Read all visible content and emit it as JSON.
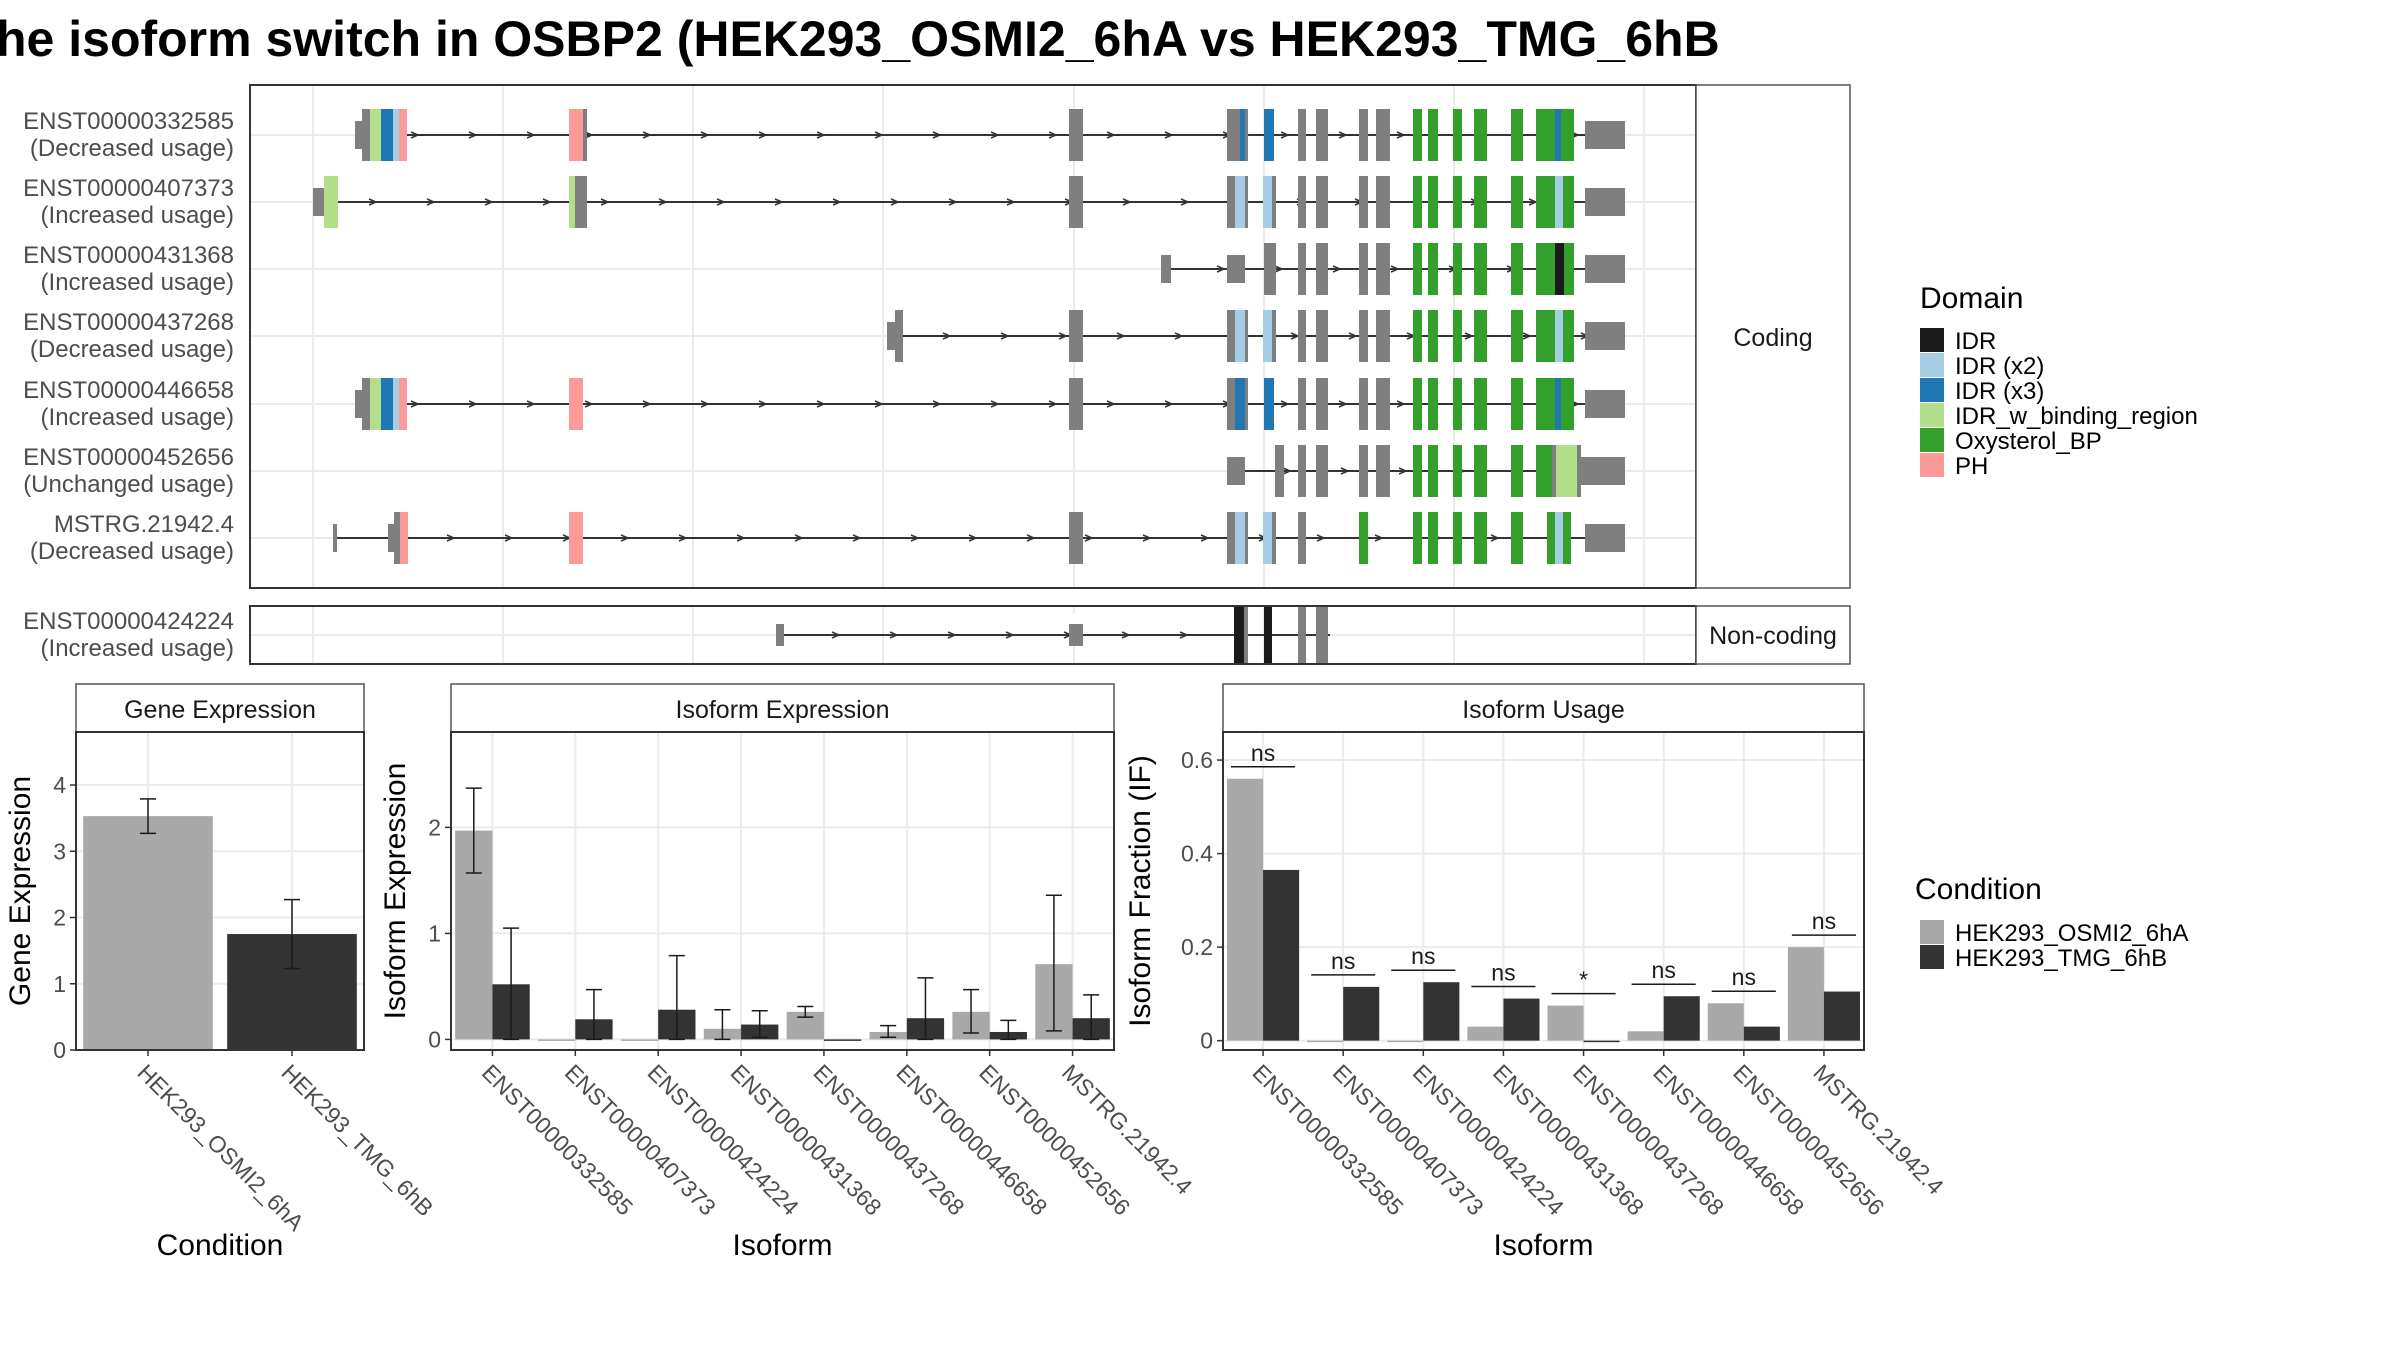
{
  "title": "he isoform switch in OSBP2 (HEK293_OSMI2_6hA vs HEK293_TMG_6hB",
  "colors": {
    "intron": "#333333",
    "noncoding": "#7f7f7f",
    "IDR": "#1a1a1a",
    "IDR (x2)": "#a6cee3",
    "IDR (x3)": "#1f78b4",
    "IDR_w_binding_region": "#b2df8a",
    "Oxysterol_BP": "#33a02c",
    "PH": "#fb9a99",
    "cond1": "#a9a9a9",
    "cond2": "#333333"
  },
  "structure": {
    "coding_strip_label": "Coding",
    "noncoding_strip_label": "Non-coding",
    "coding_transcripts": [
      {
        "id": "ENST00000332585",
        "usage": "(Decreased usage)"
      },
      {
        "id": "ENST00000407373",
        "usage": "(Increased usage)"
      },
      {
        "id": "ENST00000431368",
        "usage": "(Increased usage)"
      },
      {
        "id": "ENST00000437268",
        "usage": "(Decreased usage)"
      },
      {
        "id": "ENST00000446658",
        "usage": "(Increased usage)"
      },
      {
        "id": "ENST00000452656",
        "usage": "(Unchanged usage)"
      },
      {
        "id": "MSTRG.21942.4",
        "usage": "(Decreased usage)"
      }
    ],
    "noncoding_transcripts": [
      {
        "id": "ENST00000424224",
        "usage": "(Increased usage)"
      }
    ]
  },
  "legend_domain": {
    "title": "Domain",
    "items": [
      "IDR",
      "IDR (x2)",
      "IDR (x3)",
      "IDR_w_binding_region",
      "Oxysterol_BP",
      "PH"
    ]
  },
  "legend_condition": {
    "title": "Condition",
    "items": [
      "HEK293_OSMI2_6hA",
      "HEK293_TMG_6hB"
    ]
  },
  "chart_data": [
    {
      "type": "bar",
      "title": "Gene Expression",
      "xlabel": "Condition",
      "ylabel": "Gene Expression",
      "ylim": [
        0,
        4.8
      ],
      "yticks": [
        0,
        1,
        2,
        3,
        4
      ],
      "categories": [
        "HEK293_OSMI2_6hA",
        "HEK293_TMG_6hB"
      ],
      "values": [
        3.53,
        1.75
      ],
      "errors": [
        [
          3.27,
          3.79
        ],
        [
          1.23,
          2.27
        ]
      ]
    },
    {
      "type": "bar",
      "title": "Isoform Expression",
      "xlabel": "Isoform",
      "ylabel": "Isoform Expression",
      "ylim": [
        -0.1,
        2.9
      ],
      "yticks": [
        0,
        1,
        2
      ],
      "categories": [
        "ENST00000332585",
        "ENST00000407373",
        "ENST00000424224",
        "ENST00000431368",
        "ENST00000437268",
        "ENST00000446658",
        "ENST00000452656",
        "MSTRG.21942.4"
      ],
      "series": [
        {
          "name": "HEK293_OSMI2_6hA",
          "values": [
            1.97,
            0.0,
            0.0,
            0.1,
            0.26,
            0.07,
            0.26,
            0.71
          ],
          "errors": [
            [
              1.57,
              2.37
            ],
            null,
            null,
            [
              0.0,
              0.28
            ],
            [
              0.21,
              0.31
            ],
            [
              0.02,
              0.13
            ],
            [
              0.06,
              0.47
            ],
            [
              0.08,
              1.36
            ]
          ]
        },
        {
          "name": "HEK293_TMG_6hB",
          "values": [
            0.52,
            0.19,
            0.28,
            0.14,
            0.0,
            0.2,
            0.07,
            0.2
          ],
          "errors": [
            [
              0.0,
              1.05
            ],
            [
              0.0,
              0.47
            ],
            [
              0.0,
              0.79
            ],
            [
              0.02,
              0.27
            ],
            null,
            [
              0.0,
              0.58
            ],
            [
              0.0,
              0.18
            ],
            [
              0.0,
              0.42
            ]
          ]
        }
      ]
    },
    {
      "type": "bar",
      "title": "Isoform Usage",
      "xlabel": "Isoform",
      "ylabel": "Isoform Fraction (IF)",
      "ylim": [
        -0.02,
        0.66
      ],
      "yticks": [
        0.0,
        0.2,
        0.4,
        0.6
      ],
      "categories": [
        "ENST00000332585",
        "ENST00000407373",
        "ENST00000424224",
        "ENST00000431368",
        "ENST00000437268",
        "ENST00000446658",
        "ENST00000452656",
        "MSTRG.21942.4"
      ],
      "series": [
        {
          "name": "HEK293_OSMI2_6hA",
          "values": [
            0.56,
            0.0,
            0.0,
            0.03,
            0.075,
            0.02,
            0.08,
            0.2
          ]
        },
        {
          "name": "HEK293_TMG_6hB",
          "values": [
            0.365,
            0.115,
            0.125,
            0.09,
            0.0,
            0.095,
            0.03,
            0.105
          ]
        }
      ],
      "significance": [
        "ns",
        "ns",
        "ns",
        "ns",
        "*",
        "ns",
        "ns",
        "ns"
      ]
    }
  ]
}
